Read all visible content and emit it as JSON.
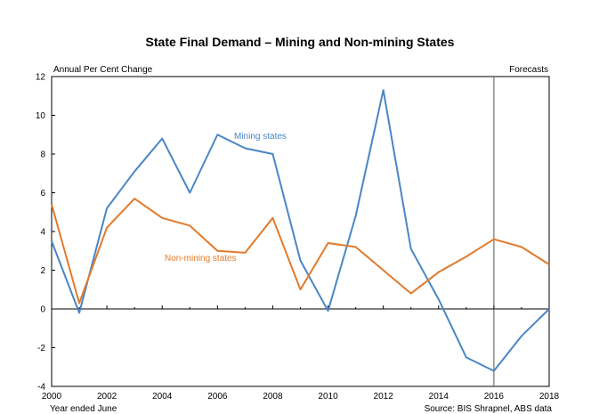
{
  "chart_data": {
    "type": "line",
    "title": "State Final Demand – Mining and Non-mining States",
    "ylabel": "Annual Per Cent Change",
    "forecast_label": "Forecasts",
    "forecast_start": 2016,
    "xlabel": "Year ended June",
    "source": "Source: BIS Shrapnel, ABS data",
    "xlim": [
      2000,
      2018
    ],
    "ylim": [
      -4,
      12
    ],
    "x_ticks": [
      2000,
      2002,
      2004,
      2006,
      2008,
      2010,
      2012,
      2014,
      2016,
      2018
    ],
    "y_ticks": [
      -4,
      -2,
      0,
      2,
      4,
      6,
      8,
      10,
      12
    ],
    "x": [
      2000,
      2001,
      2002,
      2003,
      2004,
      2005,
      2006,
      2007,
      2008,
      2009,
      2010,
      2011,
      2012,
      2013,
      2014,
      2015,
      2016,
      2017,
      2018
    ],
    "series": [
      {
        "name": "Mining states",
        "color": "#4A86C5",
        "values": [
          3.5,
          -0.2,
          5.2,
          7.1,
          8.8,
          6.0,
          9.0,
          8.3,
          8.0,
          2.5,
          -0.1,
          4.8,
          11.3,
          3.1,
          0.5,
          -2.5,
          -3.2,
          -1.4,
          0.0
        ]
      },
      {
        "name": "Non-mining states",
        "color": "#E27A2B",
        "values": [
          5.4,
          0.3,
          4.2,
          5.7,
          4.7,
          4.3,
          3.0,
          2.9,
          4.7,
          1.0,
          3.4,
          3.2,
          2.0,
          0.8,
          1.9,
          2.7,
          3.6,
          3.2,
          2.3
        ]
      }
    ],
    "grid": false
  }
}
